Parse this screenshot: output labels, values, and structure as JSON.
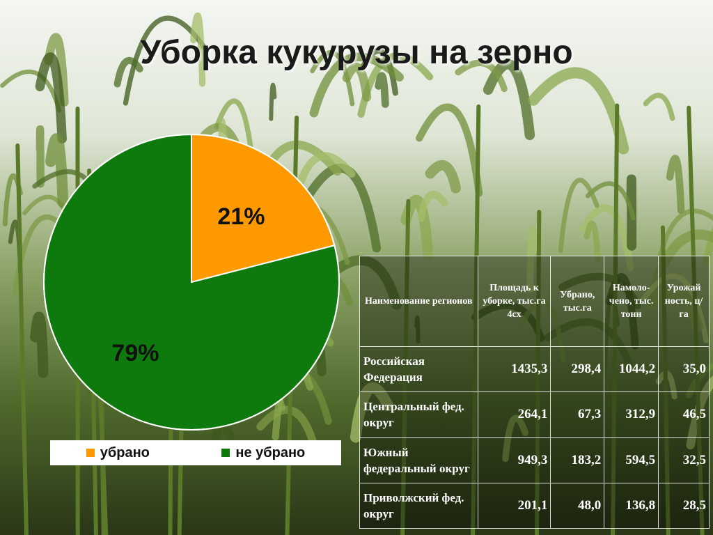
{
  "title": "Уборка кукурузы на зерно",
  "colors": {
    "harvested": "#FF9900",
    "not_harvested": "#0E7A0D",
    "text": "#111111"
  },
  "chart_data": {
    "type": "pie",
    "title": "",
    "categories": [
      "убрано",
      "не убрано"
    ],
    "values": [
      21,
      79
    ],
    "labels": [
      "21%",
      "79%"
    ],
    "legend_placement": "bottom"
  },
  "table": {
    "headers": [
      "Наименование регионов",
      "Площадь к уборке, тыс.га 4сх",
      "Убрано, тыс.га",
      "Намоло-чено, тыс. тонн",
      "Урожай ность, ц/га"
    ],
    "rows": [
      [
        "Российская Федерация",
        "1435,3",
        "298,4",
        "1044,2",
        "35,0"
      ],
      [
        "Центральный фед. округ",
        "264,1",
        "67,3",
        "312,9",
        "46,5"
      ],
      [
        "Южный федеральный округ",
        "949,3",
        "183,2",
        "594,5",
        "32,5"
      ],
      [
        "Приволжский фед. округ",
        "201,1",
        "48,0",
        "136,8",
        "28,5"
      ]
    ]
  }
}
